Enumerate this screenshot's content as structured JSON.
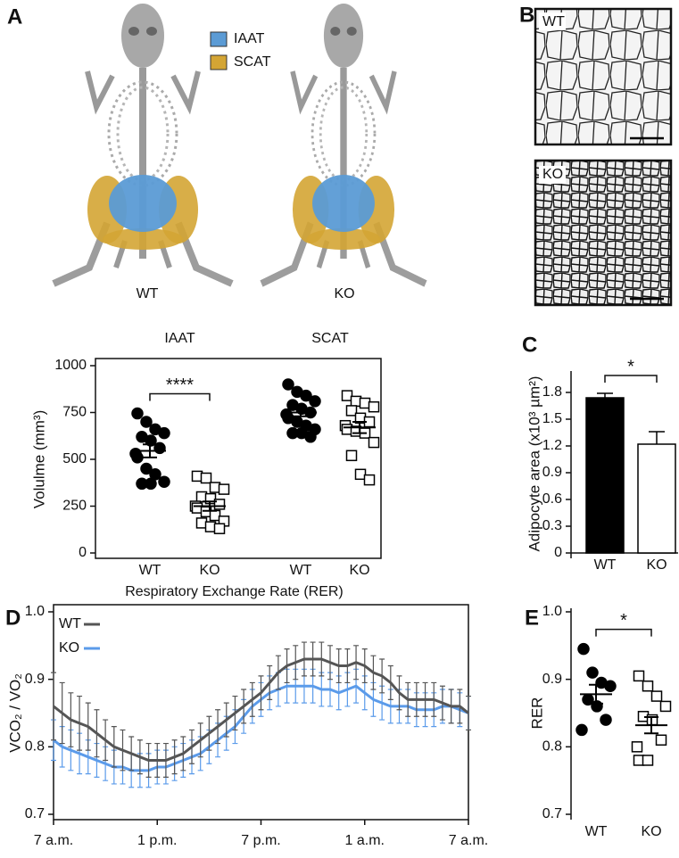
{
  "figure": {
    "panel_labels": [
      "A",
      "B",
      "C",
      "D",
      "E"
    ],
    "fat_legend": [
      {
        "name": "IAAT",
        "color": "#5b9bd5"
      },
      {
        "name": "SCAT",
        "color": "#d4a534"
      }
    ],
    "mouse_labels": [
      "WT",
      "KO"
    ],
    "histology_labels": [
      "WT",
      "KO"
    ]
  },
  "chart_data": [
    {
      "type": "strip",
      "y_label": "Volulme (mm³)",
      "group_labels": [
        "IAAT",
        "SCAT"
      ],
      "annotation": "****",
      "frame": true,
      "ylim": [
        0,
        1000
      ],
      "yticks": [
        0,
        250,
        500,
        750,
        1000
      ],
      "groups": [
        {
          "category": "WT",
          "marker": "circle",
          "fill": "#000000",
          "values": [
            745,
            700,
            660,
            640,
            620,
            600,
            560,
            530,
            510,
            450,
            420,
            380,
            370,
            370
          ],
          "mean": 545,
          "sem": 35
        },
        {
          "category": "KO",
          "marker": "square",
          "fill": "#ffffff",
          "values": [
            410,
            400,
            350,
            340,
            300,
            290,
            260,
            250,
            240,
            220,
            200,
            170,
            160,
            140,
            130
          ],
          "mean": 250,
          "sem": 25
        },
        {
          "category": "WT",
          "marker": "circle",
          "fill": "#000000",
          "values": [
            900,
            860,
            840,
            810,
            790,
            770,
            750,
            740,
            720,
            700,
            680,
            660,
            640,
            640,
            620
          ],
          "mean": 750,
          "sem": 20
        },
        {
          "category": "KO",
          "marker": "square",
          "fill": "#ffffff",
          "values": [
            840,
            810,
            800,
            780,
            760,
            720,
            700,
            680,
            660,
            650,
            640,
            590,
            520,
            420,
            390
          ],
          "mean": 670,
          "sem": 30
        }
      ]
    },
    {
      "type": "bar",
      "y_label": "Adipocyte area (x10³ µm²)",
      "annotation": "*",
      "categories": [
        "WT",
        "KO"
      ],
      "values": [
        1.74,
        1.22
      ],
      "errors": [
        0.05,
        0.14
      ],
      "colors": [
        "#000000",
        "#ffffff"
      ],
      "ylim": [
        0,
        2.0
      ],
      "yticks": [
        0,
        0.3,
        0.6,
        0.9,
        1.2,
        1.5,
        1.8
      ]
    },
    {
      "type": "line",
      "title": "Respiratory Exchange Rate (RER)",
      "y_label": "VCO₂ / VO₂",
      "frame": true,
      "xlim": [
        0,
        24
      ],
      "xticks": [
        {
          "value": 0,
          "label": "7 a.m."
        },
        {
          "value": 6,
          "label": "1 p.m."
        },
        {
          "value": 12,
          "label": "7 p.m."
        },
        {
          "value": 18,
          "label": "1 a.m."
        },
        {
          "value": 24,
          "label": "7 a.m."
        }
      ],
      "ylim": [
        0.7,
        1.0
      ],
      "yticks": [
        0.7,
        0.8,
        0.9,
        {
          "value": 1,
          "label": "1.0"
        }
      ],
      "x": [
        0,
        0.5,
        1,
        1.5,
        2,
        2.5,
        3,
        3.5,
        4,
        4.5,
        5,
        5.5,
        6,
        6.5,
        7,
        7.5,
        8,
        8.5,
        9,
        9.5,
        10,
        10.5,
        11,
        11.5,
        12,
        12.5,
        13,
        13.5,
        14,
        14.5,
        15,
        15.5,
        16,
        16.5,
        17,
        17.5,
        18,
        18.5,
        19,
        19.5,
        20,
        20.5,
        21,
        21.5,
        22,
        22.5,
        23,
        23.5,
        24
      ],
      "series": [
        {
          "name": "WT",
          "color": "#555555",
          "values": [
            0.86,
            0.85,
            0.84,
            0.835,
            0.83,
            0.82,
            0.81,
            0.8,
            0.795,
            0.79,
            0.785,
            0.78,
            0.78,
            0.78,
            0.785,
            0.79,
            0.8,
            0.81,
            0.82,
            0.83,
            0.84,
            0.85,
            0.86,
            0.87,
            0.88,
            0.895,
            0.91,
            0.92,
            0.925,
            0.93,
            0.93,
            0.93,
            0.925,
            0.92,
            0.92,
            0.925,
            0.92,
            0.91,
            0.905,
            0.895,
            0.88,
            0.87,
            0.87,
            0.87,
            0.87,
            0.865,
            0.86,
            0.86,
            0.85
          ],
          "errors": [
            0.05,
            0.045,
            0.04,
            0.04,
            0.035,
            0.035,
            0.03,
            0.03,
            0.03,
            0.025,
            0.025,
            0.025,
            0.025,
            0.025,
            0.025,
            0.025,
            0.025,
            0.025,
            0.025,
            0.025,
            0.025,
            0.025,
            0.025,
            0.025,
            0.025,
            0.025,
            0.025,
            0.025,
            0.025,
            0.025,
            0.025,
            0.025,
            0.025,
            0.025,
            0.025,
            0.025,
            0.025,
            0.025,
            0.025,
            0.025,
            0.025,
            0.025,
            0.025,
            0.025,
            0.025,
            0.025,
            0.025,
            0.025,
            0.025
          ]
        },
        {
          "name": "KO",
          "color": "#5b9bea",
          "values": [
            0.81,
            0.8,
            0.795,
            0.79,
            0.785,
            0.78,
            0.775,
            0.77,
            0.77,
            0.765,
            0.765,
            0.765,
            0.77,
            0.77,
            0.775,
            0.78,
            0.785,
            0.79,
            0.8,
            0.81,
            0.82,
            0.83,
            0.845,
            0.86,
            0.87,
            0.88,
            0.885,
            0.89,
            0.89,
            0.89,
            0.89,
            0.885,
            0.885,
            0.88,
            0.885,
            0.89,
            0.88,
            0.87,
            0.865,
            0.86,
            0.86,
            0.86,
            0.855,
            0.855,
            0.855,
            0.86,
            0.86,
            0.855,
            0.85
          ],
          "errors": [
            0.03,
            0.03,
            0.03,
            0.03,
            0.025,
            0.025,
            0.025,
            0.025,
            0.025,
            0.025,
            0.025,
            0.025,
            0.025,
            0.025,
            0.025,
            0.025,
            0.025,
            0.025,
            0.025,
            0.025,
            0.025,
            0.025,
            0.025,
            0.025,
            0.025,
            0.025,
            0.025,
            0.025,
            0.025,
            0.025,
            0.025,
            0.025,
            0.025,
            0.025,
            0.025,
            0.025,
            0.025,
            0.025,
            0.025,
            0.025,
            0.025,
            0.025,
            0.025,
            0.025,
            0.025,
            0.025,
            0.025,
            0.025,
            0.025
          ]
        }
      ]
    },
    {
      "type": "strip",
      "y_label": "RER",
      "annotation": "*",
      "ylim": [
        0.7,
        1.0
      ],
      "yticks": [
        0.7,
        0.8,
        0.9,
        {
          "value": 1,
          "label": "1.0"
        }
      ],
      "groups": [
        {
          "category": "WT",
          "marker": "circle",
          "fill": "#000000",
          "values": [
            0.945,
            0.91,
            0.895,
            0.89,
            0.87,
            0.86,
            0.84,
            0.825
          ],
          "mean": 0.878,
          "sem": 0.014
        },
        {
          "category": "KO",
          "marker": "square",
          "fill": "#ffffff",
          "values": [
            0.905,
            0.89,
            0.875,
            0.86,
            0.845,
            0.84,
            0.81,
            0.8,
            0.78,
            0.78
          ],
          "mean": 0.832,
          "sem": 0.012
        }
      ]
    }
  ]
}
